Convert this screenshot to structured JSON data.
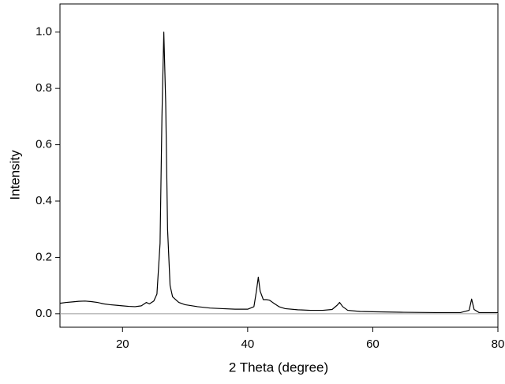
{
  "chart_data": {
    "type": "line",
    "x_label": "2 Theta (degree)",
    "y_label": "Intensity",
    "x": [
      10,
      11,
      12,
      13,
      14,
      15,
      16,
      17,
      18,
      19,
      20,
      21,
      22,
      23,
      23.8,
      24.3,
      25,
      25.5,
      26,
      26.3,
      26.6,
      26.9,
      27.2,
      27.6,
      28,
      29,
      30,
      32,
      34,
      36,
      38,
      40,
      41,
      41.4,
      41.7,
      42,
      42.5,
      43,
      43.5,
      44,
      45,
      46,
      48,
      50,
      52,
      53.5,
      54.3,
      54.7,
      55.2,
      56,
      58,
      60,
      65,
      70,
      74,
      75.4,
      75.8,
      76.2,
      77,
      80
    ],
    "series": [
      {
        "color": "#000000",
        "values": [
          0.037,
          0.04,
          0.042,
          0.044,
          0.045,
          0.043,
          0.04,
          0.035,
          0.032,
          0.03,
          0.028,
          0.026,
          0.025,
          0.028,
          0.04,
          0.035,
          0.045,
          0.07,
          0.25,
          0.7,
          1.0,
          0.75,
          0.3,
          0.1,
          0.06,
          0.04,
          0.032,
          0.025,
          0.02,
          0.018,
          0.016,
          0.016,
          0.025,
          0.08,
          0.13,
          0.08,
          0.05,
          0.05,
          0.048,
          0.04,
          0.025,
          0.018,
          0.014,
          0.012,
          0.012,
          0.015,
          0.03,
          0.04,
          0.025,
          0.012,
          0.008,
          0.007,
          0.005,
          0.004,
          0.004,
          0.012,
          0.052,
          0.015,
          0.004,
          0.004
        ]
      }
    ],
    "xlim": [
      10,
      80
    ],
    "xticks": [
      20,
      40,
      60,
      80
    ],
    "ylim": [
      -0.048,
      1.1
    ],
    "yticks": [
      {
        "value": 0,
        "label": "0.0"
      },
      0.2,
      0.4,
      0.6,
      0.8,
      {
        "value": 1,
        "label": "1.0"
      }
    ],
    "zero_line_color": "#999999"
  }
}
